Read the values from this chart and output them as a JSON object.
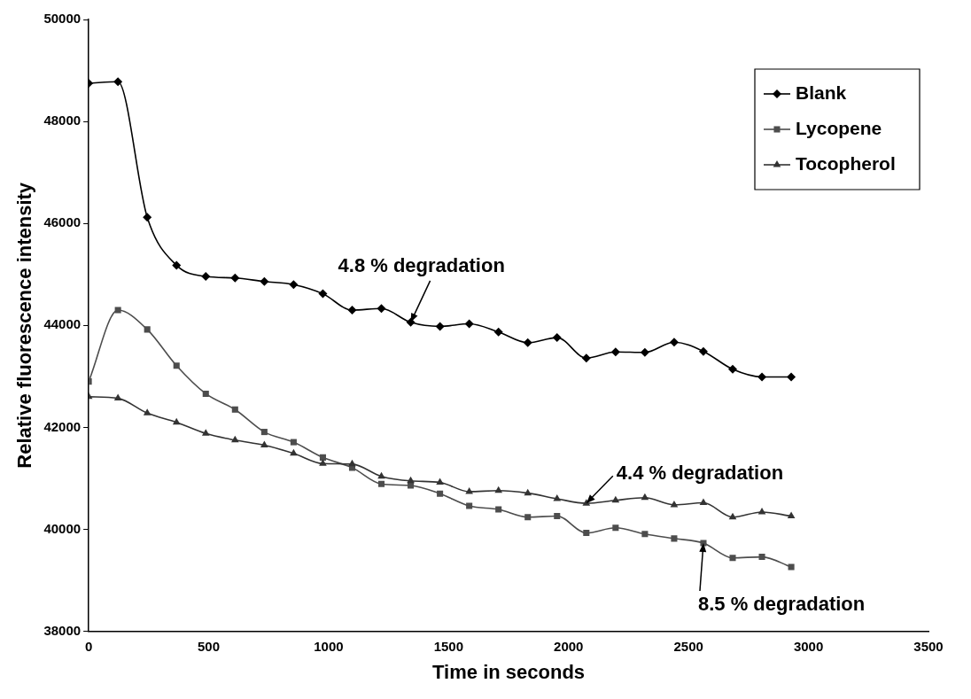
{
  "chart_data": {
    "type": "line",
    "xlabel": "Time in seconds",
    "ylabel": "Relative fluorescence intensity",
    "x": [
      0,
      122,
      244,
      366,
      488,
      610,
      732,
      854,
      976,
      1098,
      1220,
      1342,
      1464,
      1586,
      1708,
      1830,
      1952,
      2074,
      2196,
      2318,
      2440,
      2562,
      2684,
      2806,
      2928
    ],
    "series": [
      {
        "name": "Blank",
        "color": "#000000",
        "marker": "diamond",
        "values": [
          48750,
          48780,
          46120,
          45180,
          44960,
          44930,
          44860,
          44800,
          44620,
          44300,
          44330,
          44060,
          43980,
          44030,
          43870,
          43660,
          43760,
          43360,
          43480,
          43470,
          43670,
          43490,
          43140,
          42990,
          42990
        ]
      },
      {
        "name": "Lycopene",
        "color": "#4d4d4d",
        "marker": "square",
        "values": [
          42900,
          44300,
          43920,
          43210,
          42660,
          42350,
          41910,
          41710,
          41410,
          41210,
          40890,
          40860,
          40700,
          40460,
          40390,
          40240,
          40260,
          39930,
          40030,
          39910,
          39820,
          39730,
          39440,
          39460,
          39260
        ]
      },
      {
        "name": "Tocopherol",
        "color": "#333333",
        "marker": "triangle",
        "values": [
          42600,
          42570,
          42280,
          42100,
          41880,
          41750,
          41650,
          41490,
          41290,
          41280,
          41040,
          40950,
          40920,
          40740,
          40760,
          40710,
          40600,
          40510,
          40570,
          40620,
          40480,
          40520,
          40240,
          40340,
          40260
        ]
      }
    ],
    "xlim": [
      0,
      3500
    ],
    "xticks": [
      0,
      500,
      1000,
      1500,
      2000,
      2500,
      3000,
      3500
    ],
    "ylim": [
      38000,
      50000
    ],
    "yticks": [
      38000,
      40000,
      42000,
      44000,
      46000,
      48000,
      50000
    ],
    "annotations": [
      {
        "text": "4.8 % degradation",
        "x": 1342,
        "y": 44060
      },
      {
        "text": "4.4 % degradation",
        "x": 2074,
        "y": 40510
      },
      {
        "text": "8.5 % degradation",
        "x": 2562,
        "y": 39730
      }
    ],
    "legend": "top right",
    "grid": false,
    "line_style": "solid"
  }
}
